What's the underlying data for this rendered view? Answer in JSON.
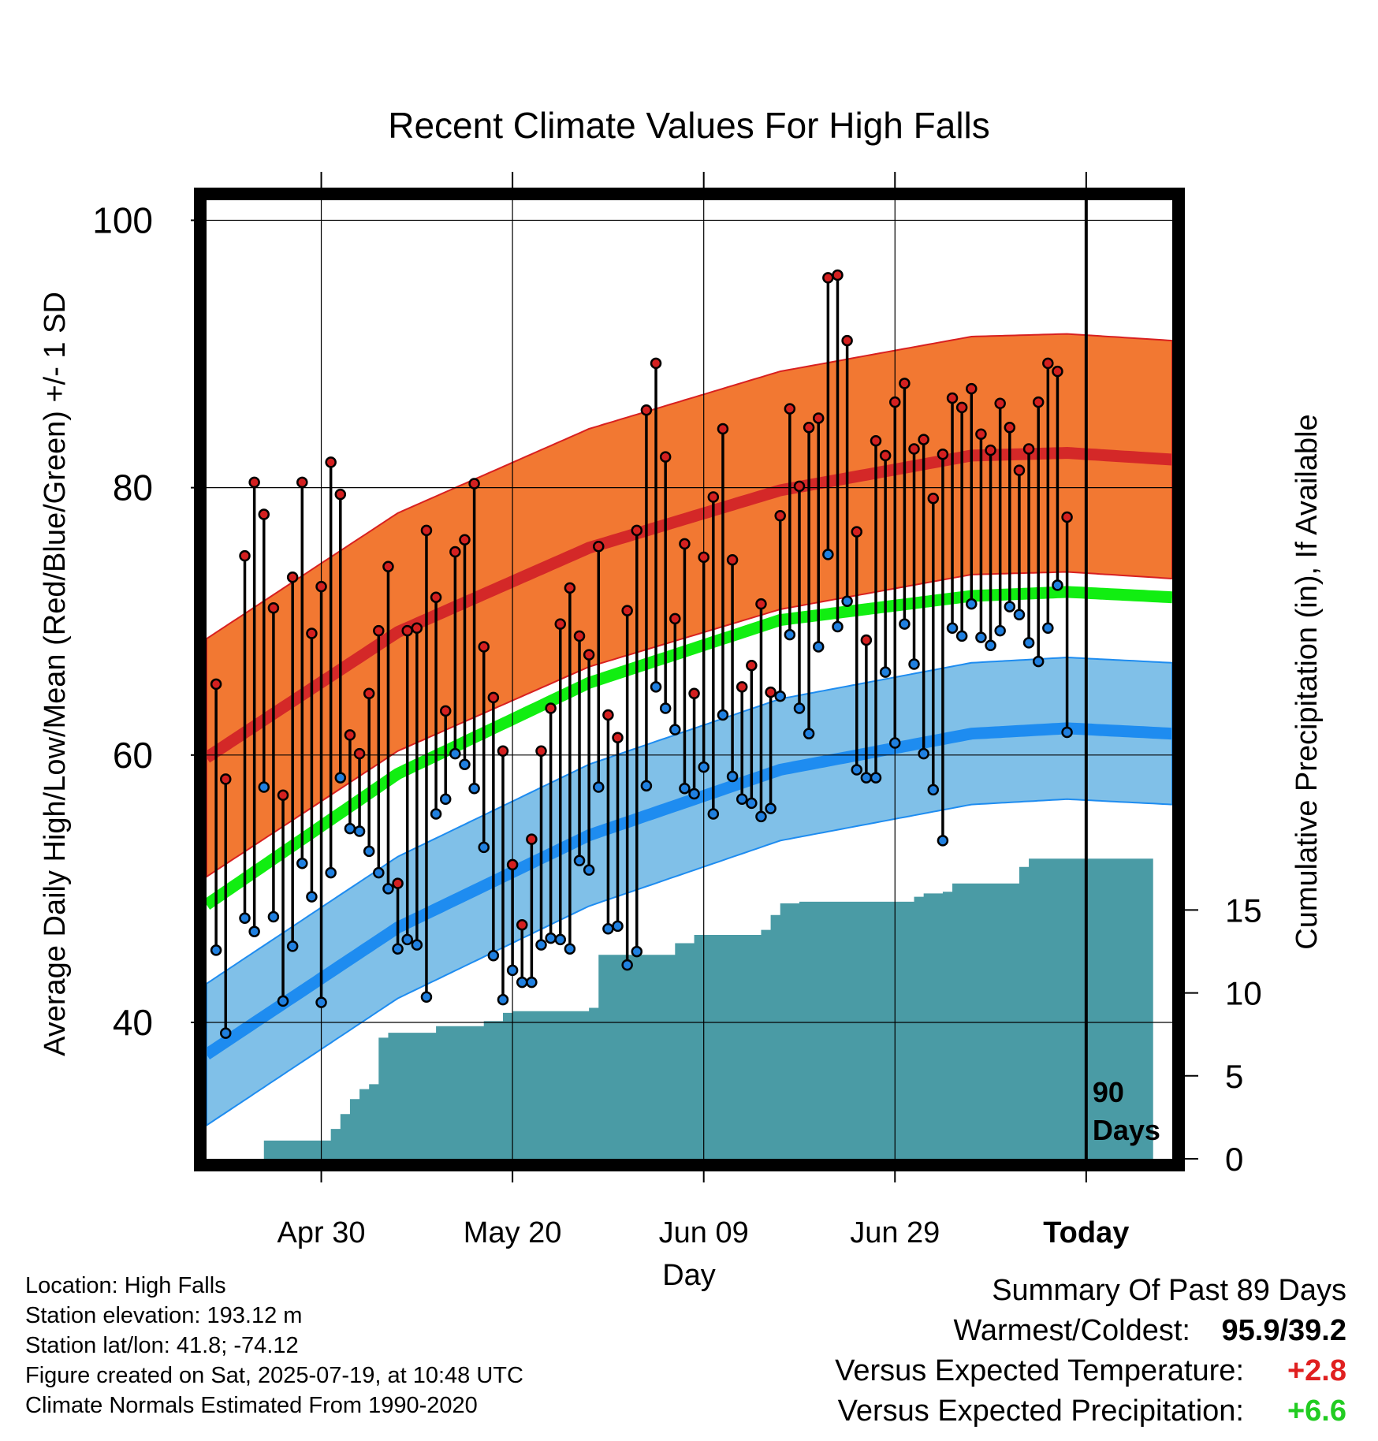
{
  "chart_data": {
    "type": "line",
    "title": "Recent Climate Values For High Falls",
    "xlabel": "Day",
    "ylabel_left": "Average Daily High/Low/Mean (Red/Blue/Green) +/- 1 SD",
    "ylabel_right": "Cumulative Precipitation (in), If Available",
    "x_tick_labels": [
      "Apr 30",
      "May 20",
      "Jun 09",
      "Jun 29",
      "Today"
    ],
    "x_tick_days": [
      12,
      32,
      52,
      72,
      92
    ],
    "y_left_ticks": [
      40,
      60,
      80,
      100
    ],
    "y_left_range": [
      29.8,
      101.5
    ],
    "y_right_ticks": [
      0,
      5,
      10,
      15
    ],
    "y_right_range": [
      0,
      57.8
    ],
    "x_range": [
      0,
      101
    ],
    "grid": true,
    "today_marker": {
      "day": 92,
      "label_line1": "90",
      "label_line2": "Days"
    },
    "normals": {
      "days": [
        0,
        20,
        40,
        60,
        80,
        90,
        101
      ],
      "high_mean": [
        59.8,
        69.2,
        75.5,
        79.8,
        82.4,
        82.6,
        82.1
      ],
      "high_sd": 8.9,
      "low_mean": [
        37.6,
        47.1,
        54.0,
        58.9,
        61.6,
        62.0,
        61.6
      ],
      "low_sd": 5.3,
      "mean": [
        48.8,
        58.6,
        65.4,
        70.1,
        71.9,
        72.2,
        71.8
      ]
    },
    "series": [
      {
        "name": "High",
        "color": "#d81e1e",
        "values": [
          65.3,
          58.2,
          null,
          74.9,
          80.4,
          78.0,
          71.0,
          57.0,
          73.3,
          80.4,
          69.1,
          72.6,
          81.9,
          79.5,
          61.5,
          60.1,
          64.6,
          69.3,
          74.1,
          50.4,
          69.3,
          69.5,
          76.8,
          71.8,
          63.3,
          75.2,
          76.1,
          80.3,
          68.1,
          64.3,
          60.3,
          51.8,
          47.3,
          53.7,
          60.3,
          63.5,
          69.8,
          72.5,
          68.9,
          67.5,
          75.6,
          63.0,
          61.3,
          70.8,
          76.8,
          85.8,
          89.3,
          82.3,
          70.2,
          75.8,
          64.6,
          74.8,
          79.3,
          84.4,
          74.6,
          65.1,
          66.7,
          71.3,
          64.7,
          77.9,
          85.9,
          80.1,
          84.5,
          85.2,
          95.7,
          95.9,
          91.0,
          76.7,
          68.6,
          83.5,
          82.4,
          86.4,
          87.8,
          82.9,
          83.6,
          79.2,
          82.5,
          86.7,
          86.0,
          87.4,
          84.0,
          82.8,
          86.3,
          84.5,
          81.3,
          82.9,
          86.4,
          89.3,
          88.7,
          77.8
        ]
      },
      {
        "name": "Low",
        "color": "#1e78d8",
        "values": [
          45.4,
          39.2,
          null,
          47.8,
          46.8,
          57.6,
          47.9,
          41.6,
          45.7,
          51.9,
          49.4,
          41.5,
          51.2,
          58.3,
          54.5,
          54.3,
          52.8,
          51.2,
          50.0,
          45.5,
          46.2,
          45.8,
          41.9,
          55.6,
          56.7,
          60.1,
          59.3,
          57.5,
          53.1,
          45.0,
          41.7,
          43.9,
          43.0,
          43.0,
          45.8,
          46.3,
          46.2,
          45.5,
          52.1,
          51.4,
          57.6,
          47.0,
          47.2,
          44.3,
          45.3,
          57.7,
          65.1,
          63.5,
          61.9,
          57.5,
          57.1,
          59.1,
          55.6,
          63.0,
          58.4,
          56.7,
          56.4,
          55.4,
          56.0,
          64.4,
          69.0,
          63.5,
          61.6,
          68.1,
          75.0,
          69.6,
          71.5,
          58.9,
          58.3,
          58.3,
          66.2,
          60.9,
          69.8,
          66.8,
          60.1,
          57.4,
          53.6,
          69.5,
          68.9,
          71.3,
          68.8,
          68.2,
          69.3,
          71.1,
          70.5,
          68.4,
          67.0,
          69.5,
          72.7,
          61.7
        ]
      }
    ],
    "precipitation": {
      "days": [
        6,
        12,
        13,
        14,
        15,
        16,
        17,
        18,
        19,
        20,
        24,
        26,
        29,
        31,
        32,
        35,
        40,
        41,
        43,
        49,
        51,
        58,
        59,
        60,
        62,
        66,
        74,
        75,
        77,
        78,
        82,
        85,
        86,
        99
      ],
      "values": [
        1.1,
        1.1,
        1.8,
        2.7,
        3.6,
        4.2,
        4.5,
        7.3,
        7.6,
        7.6,
        8.0,
        8.0,
        8.3,
        8.8,
        8.9,
        8.9,
        9.1,
        12.3,
        12.3,
        13.0,
        13.5,
        13.8,
        14.7,
        15.4,
        15.5,
        15.5,
        15.8,
        16.0,
        16.1,
        16.6,
        16.6,
        17.6,
        18.1,
        18.1
      ]
    }
  },
  "footer": {
    "location": "Location: High Falls",
    "elevation": "Station elevation: 193.12 m",
    "latlon": "Station lat/lon: 41.8; -74.12",
    "created": "Figure created on Sat, 2025-07-19, at 10:48 UTC",
    "normals_period": "Climate Normals Estimated From 1990-2020"
  },
  "summary": {
    "heading": "Summary Of Past 89 Days",
    "extremes_label": "Warmest/Coldest:",
    "extremes_value": "95.9/39.2",
    "temp_label": "Versus Expected Temperature:",
    "temp_value": "+2.8",
    "temp_color": "#e02020",
    "precip_label": "Versus Expected Precipitation:",
    "precip_value": "+6.6",
    "precip_color": "#22cc22"
  },
  "colors": {
    "high_band": "#f27832",
    "high_line": "#d42828",
    "low_band": "#80c0e8",
    "low_line": "#1e8cf0",
    "mean_line": "#11ee11",
    "precip_fill": "#4a9ba5",
    "high_dot": "#d42020",
    "low_dot": "#2080e0"
  }
}
